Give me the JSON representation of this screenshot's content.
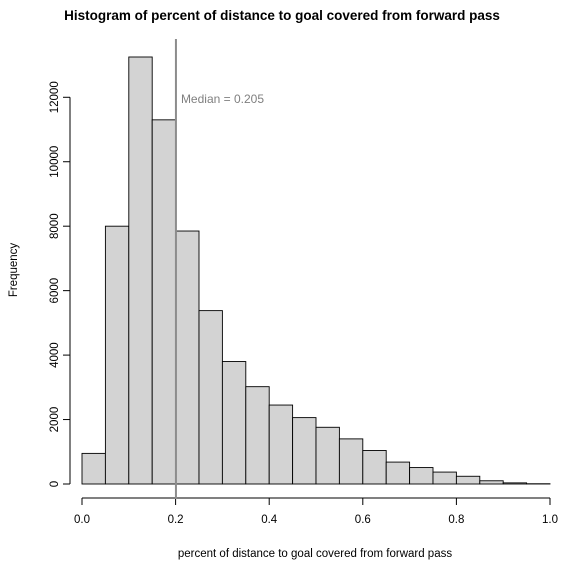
{
  "chart_data": {
    "type": "bar",
    "title": "Histogram of percent of distance to goal covered from forward pass",
    "xlabel": "percent of distance to goal covered from forward pass",
    "ylabel": "Frequency",
    "bin_width": 0.05,
    "bins_start": [
      0.0,
      0.05,
      0.1,
      0.15,
      0.2,
      0.25,
      0.3,
      0.35,
      0.4,
      0.45,
      0.5,
      0.55,
      0.6,
      0.65,
      0.7,
      0.75,
      0.8,
      0.85,
      0.9,
      0.95
    ],
    "values": [
      950,
      8000,
      13250,
      11300,
      7850,
      5380,
      3800,
      3020,
      2450,
      2060,
      1760,
      1400,
      1040,
      680,
      510,
      370,
      240,
      100,
      35,
      8
    ],
    "xlim": [
      0.0,
      1.0
    ],
    "ylim": [
      0,
      13250
    ],
    "xticks": [
      0.0,
      0.2,
      0.4,
      0.6,
      0.8,
      1.0
    ],
    "xtick_labels": [
      "0.0",
      "0.2",
      "0.4",
      "0.6",
      "0.8",
      "1.0"
    ],
    "yticks": [
      0,
      2000,
      4000,
      6000,
      8000,
      10000,
      12000
    ],
    "ytick_labels": [
      "0",
      "2000",
      "4000",
      "6000",
      "8000",
      "10000",
      "12000"
    ],
    "median": 0.205,
    "median_label": "Median = 0.205",
    "bar_color": "#d3d3d3",
    "bar_edge_color": "#000000",
    "median_line_color": "#8c8c8c",
    "grid": false
  }
}
